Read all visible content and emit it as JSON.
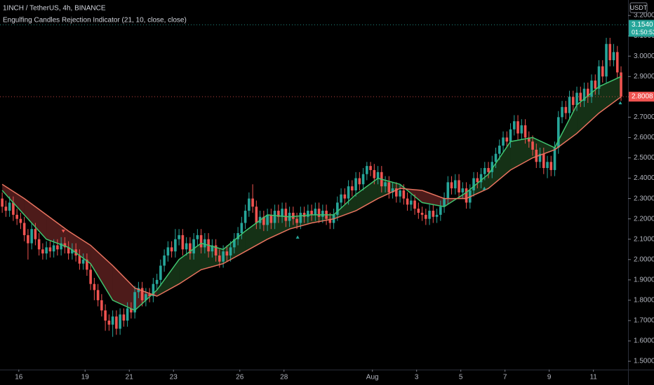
{
  "chart_data": {
    "type": "candlestick",
    "title": "1INCH / TetherUS, 4h, BINANCE",
    "subtitle": "Engulfing Candles Rejection Indicator (21, 10, close, close)",
    "currency_label": "USDT",
    "up_color": "#26a69a",
    "down_color": "#ef5350",
    "open": [
      2.3,
      2.26,
      2.24,
      2.28,
      2.22,
      2.2,
      2.18,
      2.12,
      2.08,
      2.15,
      2.1,
      2.05,
      2.03,
      2.06,
      2.04,
      2.07,
      2.05,
      2.08,
      2.06,
      2.03,
      2.05,
      2.02,
      1.98,
      2.0,
      1.95,
      1.88,
      1.85,
      1.8,
      1.75,
      1.7,
      1.68,
      1.72,
      1.66,
      1.73,
      1.7,
      1.76,
      1.74,
      1.84,
      1.86,
      1.8,
      1.83,
      1.82,
      1.88,
      1.9,
      1.97,
      2.02,
      2.06,
      2.04,
      2.1,
      2.12,
      2.05,
      2.08,
      2.03,
      2.1,
      2.12,
      2.06,
      2.1,
      2.04,
      2.07,
      2.02,
      1.99,
      2.04,
      2.02,
      2.06,
      2.1,
      2.13,
      2.18,
      2.24,
      2.3,
      2.26,
      2.18,
      2.21,
      2.17,
      2.22,
      2.18,
      2.24,
      2.21,
      2.25,
      2.19,
      2.23,
      2.2,
      2.18,
      2.23,
      2.21,
      2.24,
      2.22,
      2.25,
      2.21,
      2.24,
      2.2,
      2.18,
      2.22,
      2.28,
      2.32,
      2.3,
      2.36,
      2.34,
      2.4,
      2.37,
      2.42,
      2.46,
      2.44,
      2.4,
      2.43,
      2.36,
      2.38,
      2.33,
      2.35,
      2.31,
      2.34,
      2.3,
      2.27,
      2.29,
      2.25,
      2.23,
      2.22,
      2.2,
      2.24,
      2.21,
      2.22,
      2.26,
      2.3,
      2.38,
      2.35,
      2.39,
      2.33,
      2.35,
      2.28,
      2.34,
      2.4,
      2.38,
      2.42,
      2.45,
      2.43,
      2.48,
      2.52,
      2.56,
      2.6,
      2.58,
      2.64,
      2.68,
      2.62,
      2.66,
      2.6,
      2.58,
      2.54,
      2.48,
      2.52,
      2.45,
      2.48,
      2.44,
      2.55,
      2.7,
      2.75,
      2.72,
      2.8,
      2.76,
      2.82,
      2.78,
      2.84,
      2.8,
      2.88,
      2.84,
      2.95,
      2.9,
      3.06,
      2.98,
      3.02,
      2.92
    ],
    "high": [
      2.33,
      2.29,
      2.31,
      2.31,
      2.25,
      2.23,
      2.21,
      2.15,
      2.18,
      2.18,
      2.13,
      2.08,
      2.09,
      2.09,
      2.1,
      2.1,
      2.11,
      2.11,
      2.09,
      2.08,
      2.08,
      2.05,
      2.03,
      2.03,
      1.98,
      1.91,
      1.88,
      1.83,
      1.78,
      1.73,
      1.75,
      1.75,
      1.76,
      1.76,
      1.79,
      1.79,
      1.87,
      1.89,
      1.89,
      1.86,
      1.86,
      1.91,
      1.93,
      2.0,
      2.05,
      2.09,
      2.09,
      2.15,
      2.15,
      2.15,
      2.11,
      2.11,
      2.13,
      2.15,
      2.15,
      2.13,
      2.13,
      2.1,
      2.1,
      2.05,
      2.07,
      2.07,
      2.09,
      2.13,
      2.16,
      2.21,
      2.27,
      2.33,
      2.37,
      2.29,
      2.24,
      2.24,
      2.25,
      2.25,
      2.27,
      2.27,
      2.28,
      2.28,
      2.26,
      2.26,
      2.23,
      2.26,
      2.26,
      2.27,
      2.27,
      2.28,
      2.28,
      2.27,
      2.27,
      2.23,
      2.25,
      2.31,
      2.35,
      2.35,
      2.39,
      2.39,
      2.43,
      2.43,
      2.45,
      2.48,
      2.48,
      2.47,
      2.46,
      2.46,
      2.41,
      2.41,
      2.38,
      2.38,
      2.37,
      2.37,
      2.33,
      2.32,
      2.32,
      2.28,
      2.26,
      2.25,
      2.27,
      2.27,
      2.25,
      2.29,
      2.33,
      2.41,
      2.41,
      2.42,
      2.42,
      2.38,
      2.38,
      2.37,
      2.43,
      2.43,
      2.45,
      2.48,
      2.48,
      2.51,
      2.55,
      2.59,
      2.63,
      2.63,
      2.67,
      2.71,
      2.71,
      2.69,
      2.69,
      2.63,
      2.61,
      2.57,
      2.55,
      2.55,
      2.51,
      2.51,
      2.58,
      2.73,
      2.78,
      2.78,
      2.83,
      2.83,
      2.85,
      2.85,
      2.87,
      2.87,
      2.91,
      2.91,
      2.98,
      2.98,
      3.09,
      3.09,
      3.06,
      3.05,
      2.95
    ],
    "low": [
      2.23,
      2.21,
      2.21,
      2.19,
      2.17,
      2.15,
      2.09,
      2.0,
      2.05,
      2.07,
      2.02,
      2.0,
      2.0,
      2.01,
      2.01,
      2.02,
      2.02,
      2.03,
      2.0,
      2.0,
      1.99,
      1.95,
      1.95,
      1.92,
      1.85,
      1.8,
      1.77,
      1.72,
      1.65,
      1.65,
      1.62,
      1.63,
      1.63,
      1.67,
      1.67,
      1.71,
      1.71,
      1.81,
      1.77,
      1.77,
      1.79,
      1.79,
      1.85,
      1.87,
      1.94,
      1.99,
      2.01,
      2.01,
      2.07,
      2.02,
      2.02,
      2.0,
      2.0,
      2.07,
      2.03,
      2.03,
      2.01,
      2.01,
      1.99,
      1.96,
      1.96,
      1.99,
      1.99,
      2.03,
      2.07,
      2.1,
      2.15,
      2.21,
      2.23,
      2.15,
      2.15,
      2.14,
      2.14,
      2.15,
      2.15,
      2.18,
      2.18,
      2.16,
      2.16,
      2.17,
      2.15,
      2.15,
      2.18,
      2.18,
      2.19,
      2.19,
      2.18,
      2.18,
      2.17,
      2.15,
      2.15,
      2.19,
      2.25,
      2.27,
      2.27,
      2.31,
      2.31,
      2.34,
      2.34,
      2.39,
      2.41,
      2.37,
      2.37,
      2.33,
      2.33,
      2.3,
      2.3,
      2.28,
      2.28,
      2.27,
      2.24,
      2.24,
      2.22,
      2.2,
      2.19,
      2.17,
      2.17,
      2.18,
      2.18,
      2.19,
      2.23,
      2.27,
      2.32,
      2.32,
      2.3,
      2.3,
      2.25,
      2.25,
      2.31,
      2.35,
      2.35,
      2.39,
      2.4,
      2.4,
      2.45,
      2.49,
      2.53,
      2.55,
      2.55,
      2.61,
      2.59,
      2.59,
      2.57,
      2.55,
      2.51,
      2.45,
      2.45,
      2.42,
      2.4,
      2.41,
      2.41,
      2.52,
      2.67,
      2.69,
      2.69,
      2.73,
      2.73,
      2.75,
      2.75,
      2.77,
      2.77,
      2.81,
      2.81,
      2.87,
      2.87,
      2.95,
      2.95,
      2.89,
      2.78
    ],
    "close": [
      2.26,
      2.24,
      2.28,
      2.22,
      2.2,
      2.18,
      2.12,
      2.08,
      2.15,
      2.1,
      2.05,
      2.03,
      2.06,
      2.04,
      2.07,
      2.05,
      2.08,
      2.06,
      2.03,
      2.05,
      2.02,
      1.98,
      2.0,
      1.95,
      1.88,
      1.85,
      1.8,
      1.75,
      1.7,
      1.68,
      1.72,
      1.66,
      1.73,
      1.7,
      1.76,
      1.74,
      1.84,
      1.86,
      1.8,
      1.83,
      1.82,
      1.88,
      1.9,
      1.97,
      2.02,
      2.06,
      2.04,
      2.1,
      2.12,
      2.05,
      2.08,
      2.03,
      2.1,
      2.12,
      2.06,
      2.1,
      2.04,
      2.07,
      2.02,
      1.99,
      2.04,
      2.02,
      2.06,
      2.1,
      2.13,
      2.18,
      2.24,
      2.3,
      2.26,
      2.18,
      2.21,
      2.17,
      2.22,
      2.18,
      2.24,
      2.21,
      2.25,
      2.19,
      2.23,
      2.2,
      2.18,
      2.23,
      2.21,
      2.24,
      2.22,
      2.25,
      2.21,
      2.24,
      2.2,
      2.18,
      2.22,
      2.28,
      2.32,
      2.3,
      2.36,
      2.34,
      2.4,
      2.37,
      2.42,
      2.46,
      2.44,
      2.4,
      2.43,
      2.36,
      2.38,
      2.33,
      2.35,
      2.31,
      2.34,
      2.3,
      2.27,
      2.29,
      2.25,
      2.23,
      2.22,
      2.2,
      2.24,
      2.21,
      2.22,
      2.26,
      2.3,
      2.38,
      2.35,
      2.39,
      2.33,
      2.35,
      2.28,
      2.34,
      2.4,
      2.38,
      2.42,
      2.45,
      2.43,
      2.48,
      2.52,
      2.56,
      2.6,
      2.58,
      2.64,
      2.68,
      2.62,
      2.66,
      2.6,
      2.58,
      2.54,
      2.48,
      2.52,
      2.45,
      2.48,
      2.44,
      2.55,
      2.7,
      2.75,
      2.72,
      2.8,
      2.76,
      2.82,
      2.78,
      2.84,
      2.8,
      2.88,
      2.84,
      2.95,
      2.9,
      3.06,
      2.98,
      3.02,
      2.92,
      2.8008
    ],
    "lines": [
      {
        "color": "#3fc46f",
        "x": [
          0,
          6,
          12,
          18,
          24,
          30,
          36,
          42,
          48,
          54,
          60,
          66,
          72,
          78,
          84,
          90,
          96,
          102,
          108,
          114,
          120,
          126,
          132,
          138,
          144,
          150,
          156,
          162,
          168
        ],
        "values": [
          2.34,
          2.22,
          2.1,
          2.06,
          1.98,
          1.8,
          1.75,
          1.85,
          2.0,
          2.08,
          2.05,
          2.14,
          2.22,
          2.21,
          2.22,
          2.22,
          2.32,
          2.4,
          2.37,
          2.28,
          2.26,
          2.33,
          2.42,
          2.58,
          2.6,
          2.55,
          2.76,
          2.85,
          2.9
        ]
      },
      {
        "color": "#e8735f",
        "x": [
          0,
          6,
          12,
          18,
          24,
          30,
          36,
          42,
          48,
          54,
          60,
          66,
          72,
          78,
          84,
          90,
          96,
          102,
          108,
          114,
          120,
          126,
          132,
          138,
          144,
          150,
          156,
          162,
          168
        ],
        "values": [
          2.37,
          2.3,
          2.22,
          2.14,
          2.07,
          1.97,
          1.86,
          1.82,
          1.88,
          1.95,
          1.98,
          2.04,
          2.1,
          2.15,
          2.18,
          2.2,
          2.24,
          2.3,
          2.35,
          2.34,
          2.3,
          2.3,
          2.35,
          2.44,
          2.5,
          2.54,
          2.62,
          2.72,
          2.8
        ]
      }
    ],
    "bullish_signals": {
      "x": [
        80.2,
        130.9,
        167.8
      ],
      "y": [
        2.11,
        2.35,
        2.77
      ]
    },
    "bearish_signals": {
      "x": [
        16.6
      ],
      "y": [
        2.14
      ]
    },
    "price_labels": [
      {
        "value": 3.154,
        "label": "3.1540",
        "color": "#26a69a"
      },
      {
        "value": 2.8008,
        "label": "2.8008",
        "color": "#ef5350"
      }
    ],
    "countdown": "01:50:53",
    "xlim": [
      -0.6,
      169.9
    ],
    "ylim": [
      1.459,
      3.276
    ],
    "xticks": [
      {
        "value": 4.5,
        "label": "16"
      },
      {
        "value": 22.5,
        "label": "19"
      },
      {
        "value": 34.5,
        "label": "21"
      },
      {
        "value": 46.5,
        "label": "23"
      },
      {
        "value": 64.5,
        "label": "26"
      },
      {
        "value": 76.5,
        "label": "28"
      },
      {
        "value": 100.5,
        "label": "Aug"
      },
      {
        "value": 112.5,
        "label": "3"
      },
      {
        "value": 124.5,
        "label": "5"
      },
      {
        "value": 136.5,
        "label": "7"
      },
      {
        "value": 148.5,
        "label": "9"
      },
      {
        "value": 160.5,
        "label": "11"
      }
    ],
    "yticks": [
      {
        "value": 1.5,
        "label": "1.5000"
      },
      {
        "value": 1.6,
        "label": "1.6000"
      },
      {
        "value": 1.7,
        "label": "1.7000"
      },
      {
        "value": 1.8,
        "label": "1.8000"
      },
      {
        "value": 1.9,
        "label": "1.9000"
      },
      {
        "value": 2.0,
        "label": "2.0000"
      },
      {
        "value": 2.1,
        "label": "2.1000"
      },
      {
        "value": 2.2,
        "label": "2.2000"
      },
      {
        "value": 2.3,
        "label": "2.3000"
      },
      {
        "value": 2.4,
        "label": "2.4000"
      },
      {
        "value": 2.5,
        "label": "2.5000"
      },
      {
        "value": 2.6,
        "label": "2.6000"
      },
      {
        "value": 2.7,
        "label": "2.7000"
      },
      {
        "value": 2.8,
        "label": "2.8000"
      },
      {
        "value": 2.9,
        "label": "2.9000"
      },
      {
        "value": 3.0,
        "label": "3.0000"
      },
      {
        "value": 3.1,
        "label": "3.1000"
      },
      {
        "value": 3.2,
        "label": "3.2000"
      }
    ]
  }
}
